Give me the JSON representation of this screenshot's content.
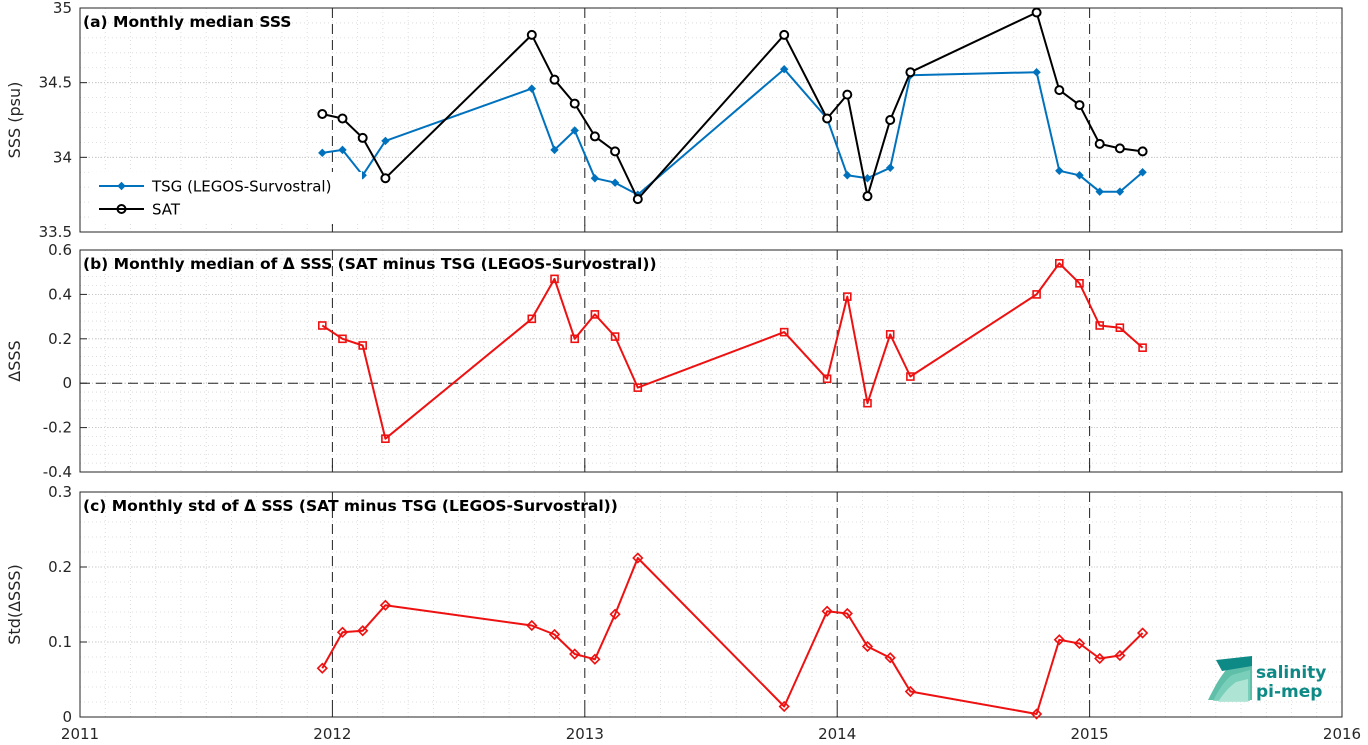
{
  "colors": {
    "tsg": "#0072bd",
    "sat": "#000000",
    "delta": "#ee1111",
    "logo": "#0d8a86"
  },
  "logo": {
    "line1": "salinity",
    "line2": "pi-mep"
  },
  "chart_data": [
    {
      "type": "line",
      "title": "(a) Monthly median SSS",
      "ylabel": "SSS (psu)",
      "xlim": [
        2011,
        2016
      ],
      "ylim": [
        33.5,
        35
      ],
      "xticks": [
        "2011",
        "2012",
        "2013",
        "2014",
        "2015",
        "2016"
      ],
      "yticks": [
        "33.5",
        "34",
        "34.5",
        "35"
      ],
      "grid": true,
      "legend_position": "left",
      "series": [
        {
          "name": "TSG (LEGOS-Survostral)",
          "marker": "diamond",
          "x": [
            2011.96,
            2012.04,
            2012.12,
            2012.21,
            2012.79,
            2012.88,
            2012.96,
            2013.04,
            2013.12,
            2013.21,
            2013.79,
            2013.96,
            2014.04,
            2014.12,
            2014.21,
            2014.29,
            2014.79,
            2014.88,
            2014.96,
            2015.04,
            2015.12,
            2015.21
          ],
          "y": [
            34.03,
            34.05,
            33.88,
            34.11,
            34.46,
            34.05,
            34.18,
            33.86,
            33.83,
            33.75,
            34.59,
            34.26,
            33.88,
            33.86,
            33.93,
            34.55,
            34.57,
            33.91,
            33.88,
            33.77,
            33.77,
            33.9
          ]
        },
        {
          "name": "SAT",
          "marker": "circle",
          "x": [
            2011.96,
            2012.04,
            2012.12,
            2012.21,
            2012.79,
            2012.88,
            2012.96,
            2013.04,
            2013.12,
            2013.21,
            2013.79,
            2013.96,
            2014.04,
            2014.12,
            2014.21,
            2014.29,
            2014.79,
            2014.88,
            2014.96,
            2015.04,
            2015.12,
            2015.21
          ],
          "y": [
            34.29,
            34.26,
            34.13,
            33.86,
            34.82,
            34.52,
            34.36,
            34.14,
            34.04,
            33.72,
            34.82,
            34.26,
            34.42,
            33.74,
            34.25,
            34.57,
            34.97,
            34.45,
            34.35,
            34.09,
            34.06,
            34.04
          ]
        }
      ],
      "vlines": [
        2012,
        2013,
        2014,
        2015
      ]
    },
    {
      "type": "line",
      "title": "(b) Monthly median of Δ SSS (SAT minus TSG (LEGOS-Survostral))",
      "ylabel": "ΔSSS",
      "xlim": [
        2011,
        2016
      ],
      "ylim": [
        -0.4,
        0.6
      ],
      "xticks": [
        "2011",
        "2012",
        "2013",
        "2014",
        "2015",
        "2016"
      ],
      "yticks": [
        "-0.4",
        "-0.2",
        "0",
        "0.2",
        "0.4",
        "0.6"
      ],
      "grid": true,
      "series": [
        {
          "marker": "square",
          "x": [
            2011.96,
            2012.04,
            2012.12,
            2012.21,
            2012.79,
            2012.88,
            2012.96,
            2013.04,
            2013.12,
            2013.21,
            2013.79,
            2013.96,
            2014.04,
            2014.12,
            2014.21,
            2014.29,
            2014.79,
            2014.88,
            2014.96,
            2015.04,
            2015.12,
            2015.21
          ],
          "y": [
            0.26,
            0.2,
            0.17,
            -0.25,
            0.29,
            0.47,
            0.2,
            0.31,
            0.21,
            -0.02,
            0.23,
            0.02,
            0.39,
            -0.09,
            0.22,
            0.03,
            0.4,
            0.54,
            0.45,
            0.26,
            0.25,
            0.16
          ]
        }
      ],
      "hline": 0,
      "vlines": [
        2012,
        2013,
        2014,
        2015
      ]
    },
    {
      "type": "line",
      "title": "(c) Monthly std of Δ SSS (SAT minus TSG (LEGOS-Survostral))",
      "ylabel": "Std(ΔSSS)",
      "xlim": [
        2011,
        2016
      ],
      "ylim": [
        0,
        0.3
      ],
      "xticks": [
        "2011",
        "2012",
        "2013",
        "2014",
        "2015",
        "2016"
      ],
      "yticks": [
        "0",
        "0.1",
        "0.2",
        "0.3"
      ],
      "grid": true,
      "series": [
        {
          "marker": "diamond",
          "x": [
            2011.96,
            2012.04,
            2012.12,
            2012.21,
            2012.79,
            2012.88,
            2012.96,
            2013.04,
            2013.12,
            2013.21,
            2013.79,
            2013.96,
            2014.04,
            2014.12,
            2014.21,
            2014.29,
            2014.79,
            2014.88,
            2014.96,
            2015.04,
            2015.12,
            2015.21
          ],
          "y": [
            0.065,
            0.113,
            0.115,
            0.149,
            0.122,
            0.11,
            0.084,
            0.077,
            0.137,
            0.212,
            0.014,
            0.141,
            0.138,
            0.094,
            0.079,
            0.034,
            0.004,
            0.103,
            0.098,
            0.078,
            0.082,
            0.112
          ]
        }
      ],
      "vlines": [
        2012,
        2013,
        2014,
        2015
      ]
    }
  ]
}
